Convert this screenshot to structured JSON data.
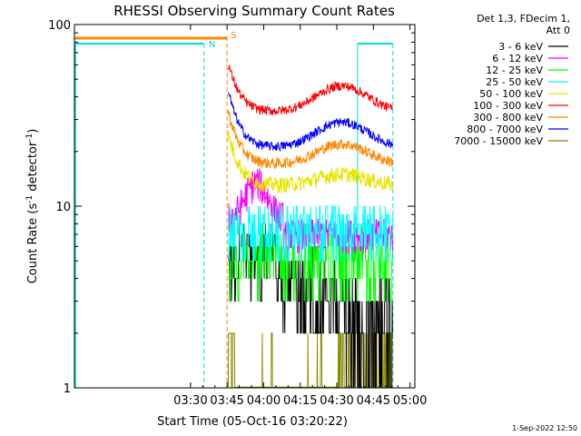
{
  "chart_data": {
    "type": "line",
    "title": "RHESSI Observing Summary Count Rates",
    "xlabel": "Start Time (05-Oct-16 03:20:22)",
    "ylabel_main": "Count Rate (s",
    "ylabel_sup1": "-1",
    "ylabel_mid": " detector",
    "ylabel_sup2": "-1",
    "ylabel_end": ")",
    "y_scale": "log",
    "ylim": [
      1,
      100
    ],
    "xlim_minutes": [
      -37.6,
      102
    ],
    "x_ticks": [
      {
        "label": "03:30",
        "m": 10
      },
      {
        "label": "03:45",
        "m": 25
      },
      {
        "label": "04:00",
        "m": 40
      },
      {
        "label": "04:15",
        "m": 55
      },
      {
        "label": "04:30",
        "m": 70
      },
      {
        "label": "04:45",
        "m": 85
      },
      {
        "label": "05:00",
        "m": 100
      }
    ],
    "y_ticks": [
      {
        "label": "1",
        "v": 1
      },
      {
        "label": "10",
        "v": 10
      },
      {
        "label": "100",
        "v": 100
      }
    ],
    "legend_header": [
      "Det 1,3, FDecim 1,",
      "Att 0"
    ],
    "series": [
      {
        "name": "3 - 6 keV",
        "color": "#000000"
      },
      {
        "name": "6 - 12 keV",
        "color": "#ff00ff"
      },
      {
        "name": "12 - 25 keV",
        "color": "#00ff00"
      },
      {
        "name": "25 - 50 keV",
        "color": "#00ffff"
      },
      {
        "name": "50 - 100 keV",
        "color": "#e6e600"
      },
      {
        "name": "100 - 300 keV",
        "color": "#ff0000"
      },
      {
        "name": "300 - 800 keV",
        "color": "#ff8800"
      },
      {
        "name": "800 - 7000 keV",
        "color": "#0000ff"
      },
      {
        "name": "7000 - 15000 keV",
        "color": "#888800"
      }
    ],
    "annotations": [
      {
        "label": "N",
        "color": "#00dddd"
      },
      {
        "label": "S",
        "color": "#ff8800"
      }
    ],
    "timestamp": "1-Sep-2022 12:50"
  }
}
